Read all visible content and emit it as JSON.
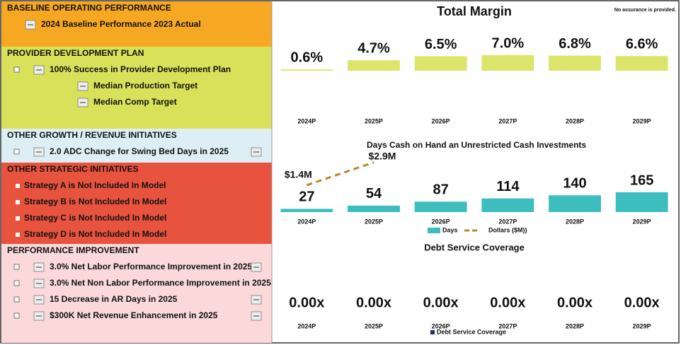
{
  "panel": {
    "sections": [
      {
        "title": "BASELINE OPERATING PERFORMANCE",
        "items": [
          "2024 Baseline Performance 2023 Actual"
        ]
      },
      {
        "title": "PROVIDER DEVELOPMENT PLAN",
        "items": [
          "100% Success in Provider Development Plan",
          "Median Production Target",
          "Median Comp Target"
        ]
      },
      {
        "title": "OTHER GROWTH / REVENUE INITIATIVES",
        "items": [
          "2.0 ADC Change for Swing Bed Days in 2025"
        ]
      },
      {
        "title": "OTHER STRATEGIC INITIATIVES",
        "items": [
          "Strategy A is Not Included In Model",
          "Strategy B is Not Included In Model",
          "Strategy C is Not Included In Model",
          "Strategy D is Not Included In Model"
        ]
      },
      {
        "title": "PERFORMANCE IMPROVEMENT",
        "items": [
          "3.0% Net Labor Performance Improvement  in 2025",
          "3.0% Net Non Labor Performance Improvement in 2025",
          "15 Decrease in AR Days in 2025",
          "$300K Net Revenue Enhancement in 2025"
        ]
      }
    ]
  },
  "chart_data": [
    {
      "type": "bar",
      "title": "Total Margin",
      "note": "No assurance is provided.",
      "categories": [
        "2024P",
        "2025P",
        "2026P",
        "2027P",
        "2028P",
        "2029P"
      ],
      "values": [
        0.6,
        4.7,
        6.5,
        7.0,
        6.8,
        6.6
      ],
      "value_labels": [
        "0.6%",
        "4.7%",
        "6.5%",
        "7.0%",
        "6.8%",
        "6.6%"
      ],
      "color": "#dde46a"
    },
    {
      "type": "combo",
      "title": "Days Cash on Hand an Unrestricted Cash Investments",
      "categories": [
        "2024P",
        "2025P",
        "2026P",
        "2027P",
        "2028P",
        "2029P"
      ],
      "series": [
        {
          "name": "Days",
          "color": "#3dbdbd",
          "values": [
            27,
            54,
            87,
            114,
            140,
            165
          ]
        },
        {
          "name": "Dollars ($M))",
          "color": "#b8862b",
          "values": [
            1.4,
            2.9,
            null,
            null,
            null,
            null
          ],
          "value_labels": [
            "$1.4M",
            "$2.9M",
            null,
            null,
            null,
            null
          ]
        }
      ]
    },
    {
      "type": "bar",
      "title": "Debt Service Coverage",
      "categories": [
        "2024P",
        "2025P",
        "2026P",
        "2027P",
        "2028P",
        "2029P"
      ],
      "values": [
        0,
        0,
        0,
        0,
        0,
        0
      ],
      "value_labels": [
        "0.00x",
        "0.00x",
        "0.00x",
        "0.00x",
        "0.00x",
        "0.00x"
      ],
      "color": "#1f2f6b",
      "legend": "Debt Service Coverage"
    }
  ]
}
